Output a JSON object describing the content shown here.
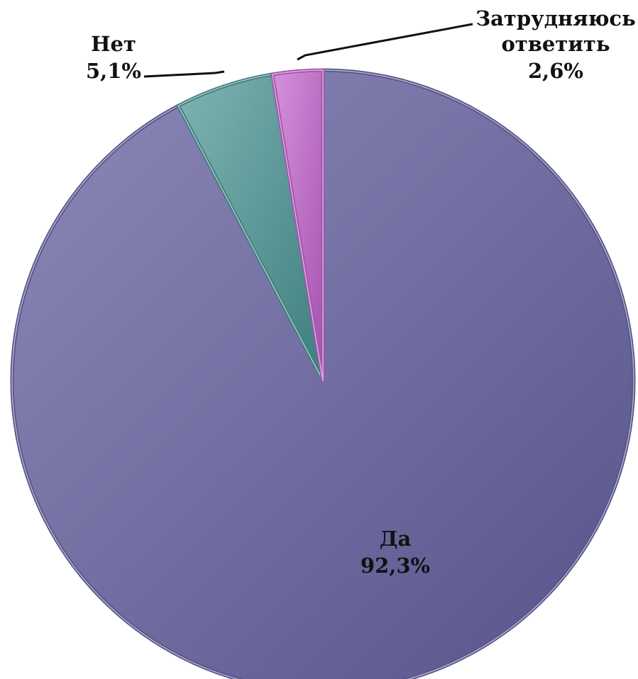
{
  "chart_data": {
    "type": "pie",
    "title": "",
    "start_angle_deg": 0,
    "direction": "clockwise",
    "slices": [
      {
        "label": "Да",
        "value": 92.3,
        "value_label": "92,3%",
        "color": "#6e6ba0",
        "color_light": "#8c89b8",
        "color_dark": "#56538a"
      },
      {
        "label": "Нет",
        "value": 5.1,
        "value_label": "5,1%",
        "color": "#5c9a9a",
        "color_light": "#7fb3b3",
        "color_dark": "#3f7f7f"
      },
      {
        "label": "Затрудняюсь ответить",
        "value": 2.6,
        "value_label": "2,6%",
        "color": "#c06ec8",
        "color_light": "#d592dc",
        "color_dark": "#a552ae"
      }
    ],
    "labels": {
      "da": {
        "line1": "Да",
        "line2": "92,3%"
      },
      "net": {
        "line1": "Нет",
        "line2": "5,1%"
      },
      "zatr": {
        "line1": "Затрудняюсь",
        "line2": "ответить",
        "line3": "2,6%"
      }
    }
  }
}
